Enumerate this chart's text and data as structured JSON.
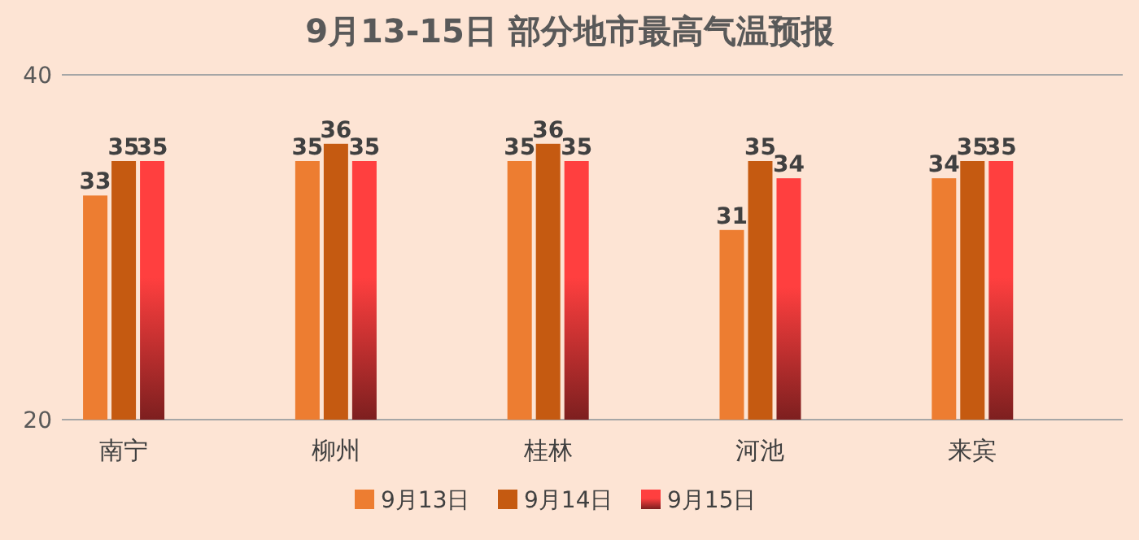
{
  "chart_data": {
    "type": "bar",
    "title": "9月13-15日 部分地市最高气温预报",
    "categories": [
      "南宁",
      "柳州",
      "桂林",
      "河池",
      "来宾"
    ],
    "series": [
      {
        "name": "9月13日",
        "color": "#ed7d31",
        "values": [
          33,
          35,
          35,
          31,
          34
        ]
      },
      {
        "name": "9月14日",
        "color": "#c55a11",
        "values": [
          35,
          36,
          36,
          35,
          35
        ]
      },
      {
        "name": "9月15日",
        "color": "#ff3f3f",
        "values": [
          35,
          35,
          35,
          34,
          35
        ]
      }
    ],
    "ylim": [
      20,
      40
    ],
    "yticks": [
      20,
      40
    ],
    "legend": "bottom",
    "data_labels": true
  }
}
